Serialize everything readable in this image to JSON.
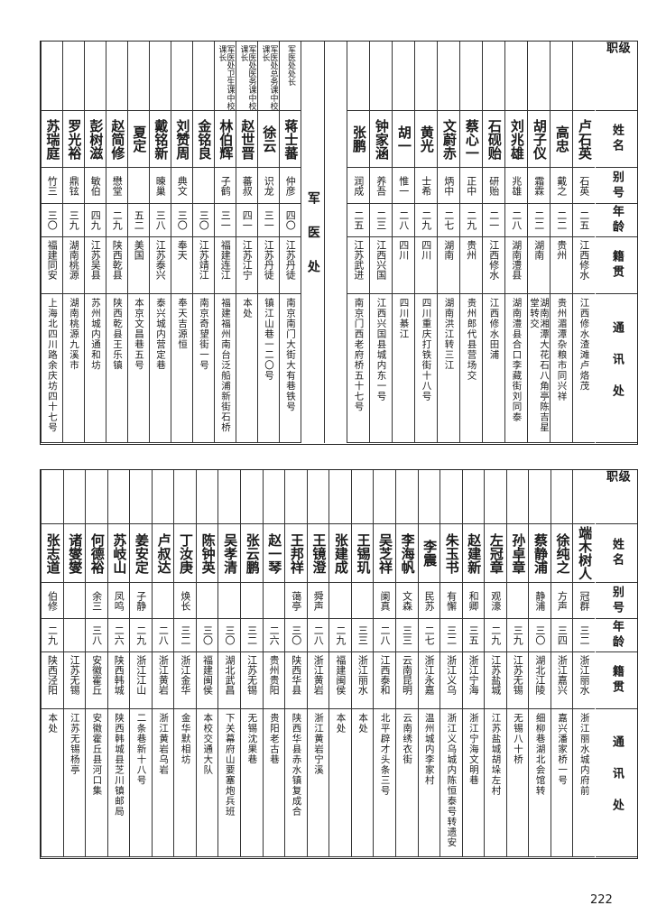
{
  "headers": {
    "rank": "级 职",
    "name": "姓名",
    "alias": "别号",
    "age": "年龄",
    "native": "籍贯",
    "address": "通讯处"
  },
  "top_table": {
    "section_label": "军医处",
    "group1": [
      {
        "rank": "",
        "name": "卢石英",
        "alias": "石英",
        "age": "二五",
        "native": "江西修水",
        "address": "江西修水渣滩卢烙茂"
      },
      {
        "rank": "",
        "name": "高忠",
        "alias": "戴之",
        "age": "二二",
        "native": "贵州",
        "address": "贵州湄潭杂粮市同兴祥"
      },
      {
        "rank": "",
        "name": "胡子仪",
        "alias": "霜霖",
        "age": "二二",
        "native": "湖南",
        "address": "湖南湘潭大花石八角亭陈吉星堂转交"
      },
      {
        "rank": "",
        "name": "刘兆雄",
        "alias": "兆雄",
        "age": "二八",
        "native": "湖南澧县",
        "address": "湖南澧县合口李藏街刘同泰"
      },
      {
        "rank": "",
        "name": "石砚贻",
        "alias": "研贻",
        "age": "二一",
        "native": "江西修水",
        "address": "江西修水田浦"
      },
      {
        "rank": "",
        "name": "蔡心一",
        "alias": "正中",
        "age": "二九",
        "native": "贵州",
        "address": "贵州郎代县营场交"
      },
      {
        "rank": "",
        "name": "文蔚赤",
        "alias": "炳中",
        "age": "二七",
        "native": "湖南",
        "address": "湖南洪江转三江"
      },
      {
        "rank": "",
        "name": "黄光",
        "alias": "士希",
        "age": "二九",
        "native": "四川",
        "address": "四川重庆打铁街十八号"
      },
      {
        "rank": "",
        "name": "胡一",
        "alias": "惟一",
        "age": "二八",
        "native": "四川",
        "address": "四川綦江"
      },
      {
        "rank": "",
        "name": "钟家涵",
        "alias": "养吾",
        "age": "二三",
        "native": "江西兴国",
        "address": "江西兴国县城内东一号"
      },
      {
        "rank": "",
        "name": "张鹏",
        "alias": "润成",
        "age": "二五",
        "native": "江苏武进",
        "address": "南京门西老府桥五十七号"
      }
    ],
    "group2": [
      {
        "rank": "军医处处长",
        "name": "蒋士蕃",
        "alias": "仲彦",
        "age": "四〇",
        "native": "江苏丹徒",
        "address": "南京南门大街大有巷铁号"
      },
      {
        "rank": "军医处总务课中校课长",
        "name": "徐云",
        "alias": "识龙",
        "age": "三一",
        "native": "江苏丹徒",
        "address": "镇江山巷一二〇号"
      },
      {
        "rank": "军医处医务课中校课长",
        "name": "赵世晋",
        "alias": "蕃叔",
        "age": "四一",
        "native": "江苏江宁",
        "address": "本处"
      },
      {
        "rank": "军医处卫生课中校课长",
        "name": "林伯辉",
        "alias": "子鹤",
        "age": "三一",
        "native": "福建连江",
        "address": "福建福州南台泛船浦新街石桥"
      },
      {
        "rank": "",
        "name": "金铭良",
        "alias": "",
        "age": "三〇",
        "native": "江苏靖江",
        "address": "南京奇望街一号"
      },
      {
        "rank": "",
        "name": "刘赞周",
        "alias": "典文",
        "age": "三〇",
        "native": "奉天",
        "address": "奉天吉源恒"
      },
      {
        "rank": "",
        "name": "戴铭新",
        "alias": "暕巢",
        "age": "三八",
        "native": "江苏泰兴",
        "address": "泰兴城内营定巷"
      },
      {
        "rank": "",
        "name": "夏定",
        "alias": "",
        "age": "五二",
        "native": "美国",
        "address": "本京文昌巷五号"
      },
      {
        "rank": "",
        "name": "赵简修",
        "alias": "懋堂",
        "age": "二九",
        "native": "陕西乾县",
        "address": "陕西乾县王乐镇"
      },
      {
        "rank": "",
        "name": "彭树滋",
        "alias": "敏伯",
        "age": "四九",
        "native": "江苏吴县",
        "address": "苏州城内通和坊"
      },
      {
        "rank": "",
        "name": "罗光裕",
        "alias": "鼎铉",
        "age": "三九",
        "native": "湖南桃源",
        "address": "湖南桃源九溪市"
      },
      {
        "rank": "",
        "name": "苏瑞庭",
        "alias": "竹三",
        "age": "三〇",
        "native": "福建同安",
        "address": "上海北四川路余庆坊四十七号"
      }
    ]
  },
  "bottom_table": [
    {
      "rank": "",
      "name": "端木树人",
      "alias": "冠群",
      "age": "三二",
      "native": "浙江丽水",
      "address": "浙江丽水城内府前"
    },
    {
      "rank": "",
      "name": "徐纯之",
      "alias": "方声",
      "age": "三四",
      "native": "浙江嘉兴",
      "address": "嘉兴潘家桥一号"
    },
    {
      "rank": "",
      "name": "蔡静浦",
      "alias": "静浦",
      "age": "三〇",
      "native": "湖北江陵",
      "address": "细柳巷湖北会馆转"
    },
    {
      "rank": "",
      "name": "孙卓章",
      "alias": "",
      "age": "三九",
      "native": "江苏无锡",
      "address": "无锡八十桥"
    },
    {
      "rank": "",
      "name": "左冠章",
      "alias": "观濠",
      "age": "二九",
      "native": "江苏盐城",
      "address": "江苏盐城胡垛左村"
    },
    {
      "rank": "",
      "name": "赵建新",
      "alias": "和卿",
      "age": "三五",
      "native": "浙江宁海",
      "address": "浙江宁海文明巷"
    },
    {
      "rank": "",
      "name": "朱玉书",
      "alias": "有懈",
      "age": "三二",
      "native": "浙江义乌",
      "address": "浙江义乌城内陈恒泰号转遗安"
    },
    {
      "rank": "",
      "name": "李震",
      "alias": "民苏",
      "age": "二七",
      "native": "浙江永嘉",
      "address": "温州城内李家村"
    },
    {
      "rank": "",
      "name": "李海帆",
      "alias": "文森",
      "age": "三三",
      "native": "云南昆明",
      "address": "云南绣衣街"
    },
    {
      "rank": "",
      "name": "吴芝祥",
      "alias": "阑真",
      "age": "二八",
      "native": "江西泰和",
      "address": "北平辟才头条三号"
    },
    {
      "rank": "",
      "name": "王锡玑",
      "alias": "",
      "age": "三三",
      "native": "浙江丽水",
      "address": "本处"
    },
    {
      "rank": "",
      "name": "张建成",
      "alias": "",
      "age": "二九",
      "native": "福建闽侯",
      "address": "本处"
    },
    {
      "rank": "",
      "name": "王镜澄",
      "alias": "舜声",
      "age": "二八",
      "native": "浙江黄岩",
      "address": "浙江黄岩宁溪"
    },
    {
      "rank": "",
      "name": "王邦祥",
      "alias": "蔼亭",
      "age": "三〇",
      "native": "陕西华县",
      "address": "陕西华县赤水镇复成合"
    },
    {
      "rank": "",
      "name": "赵一琴",
      "alias": "",
      "age": "二六",
      "native": "贵州贵阳",
      "address": "贵阳老古巷"
    },
    {
      "rank": "",
      "name": "张云鹏",
      "alias": "",
      "age": "三二",
      "native": "江苏无锡",
      "address": "无锡沈果巷"
    },
    {
      "rank": "",
      "name": "吴孝清",
      "alias": "",
      "age": "三〇",
      "native": "湖北武昌",
      "address": "下关幕府山要塞炮兵班"
    },
    {
      "rank": "",
      "name": "陈钟英",
      "alias": "",
      "age": "三〇",
      "native": "福建闽侯",
      "address": "本校交通大队"
    },
    {
      "rank": "",
      "name": "丁汝庚",
      "alias": "焕长",
      "age": "三二",
      "native": "浙江金华",
      "address": "金华默相坊"
    },
    {
      "rank": "",
      "name": "卢叔达",
      "alias": "",
      "age": "二八",
      "native": "浙江黄岩",
      "address": "浙江黄岩乌岩"
    },
    {
      "rank": "",
      "name": "姜安定",
      "alias": "子静",
      "age": "二九",
      "native": "浙江江山",
      "address": "二条巷新十八号"
    },
    {
      "rank": "",
      "name": "苏岐山",
      "alias": "凤鸣",
      "age": "二六",
      "native": "陕西韩城",
      "address": "陕西韩城县芝川镇邮局"
    },
    {
      "rank": "",
      "name": "何德裕",
      "alias": "余三",
      "age": "三八",
      "native": "安徽霍丘",
      "address": "安徽霍丘县河口集"
    },
    {
      "rank": "",
      "name": "诸燮燮",
      "alias": "",
      "age": "",
      "native": "江苏无锡",
      "address": "江苏无锡杨亭"
    },
    {
      "rank": "",
      "name": "张志道",
      "alias": "伯修",
      "age": "二九",
      "native": "陕西泾阳",
      "address": "本处"
    }
  ],
  "page_number": "222"
}
